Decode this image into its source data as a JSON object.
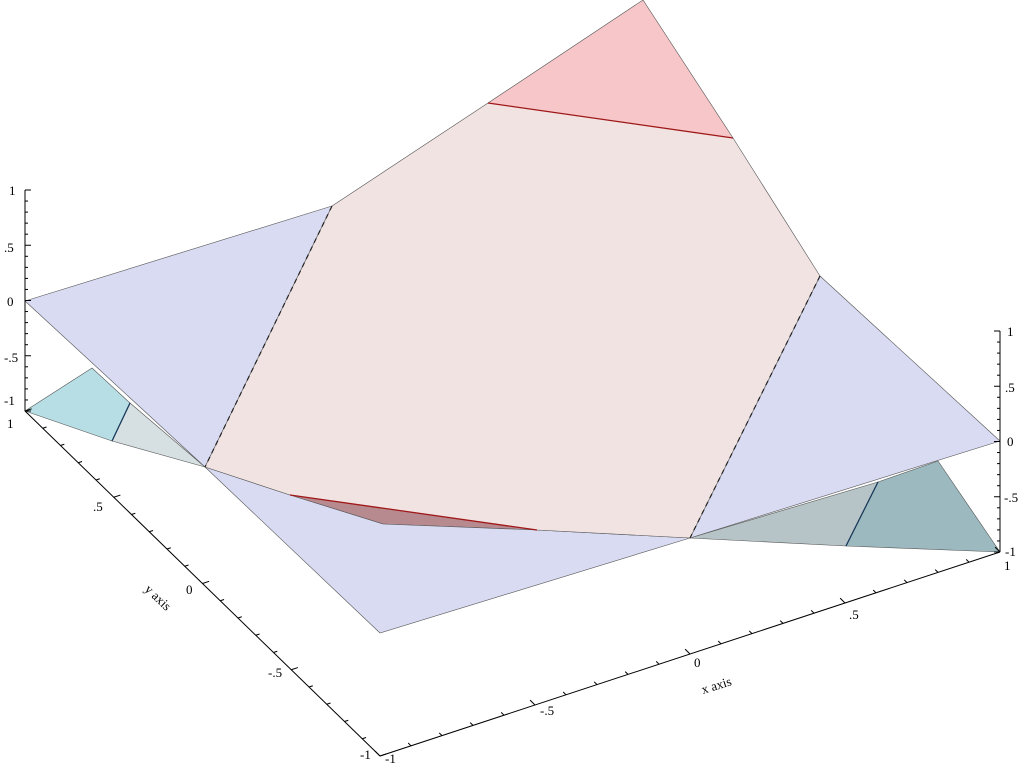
{
  "colors": {
    "plane_fill": "#d8dbf2",
    "center_fill": "#f2e3e3",
    "top_red_fill": "#f7c6c8",
    "bottom_red_fill": "#b78a90",
    "left_cyan_fill": "#b6dee4",
    "left_grey_fill": "#d6e0e3",
    "right_teal_fill": "#9bb9bf",
    "right_grey_fill": "#b6c4c7",
    "edge_line": "#555555",
    "red_contour": "#a01818",
    "blue_contour": "#1a3a5a",
    "dashed_contour": "#222222"
  },
  "axes": {
    "x_axis": {
      "title": "x axis",
      "ticks": [
        "-1",
        "-.5",
        "0",
        ".5",
        "1"
      ]
    },
    "y_axis": {
      "title": "y axis",
      "ticks": [
        "1",
        ".5",
        "0",
        "-.5",
        "-1"
      ]
    },
    "z_axis_left": {
      "ticks": [
        "1",
        ".5",
        "0",
        "-.5",
        "-1"
      ]
    },
    "z_axis_right": {
      "ticks": [
        "1",
        ".5",
        "0",
        "-.5",
        "-1"
      ]
    }
  }
}
